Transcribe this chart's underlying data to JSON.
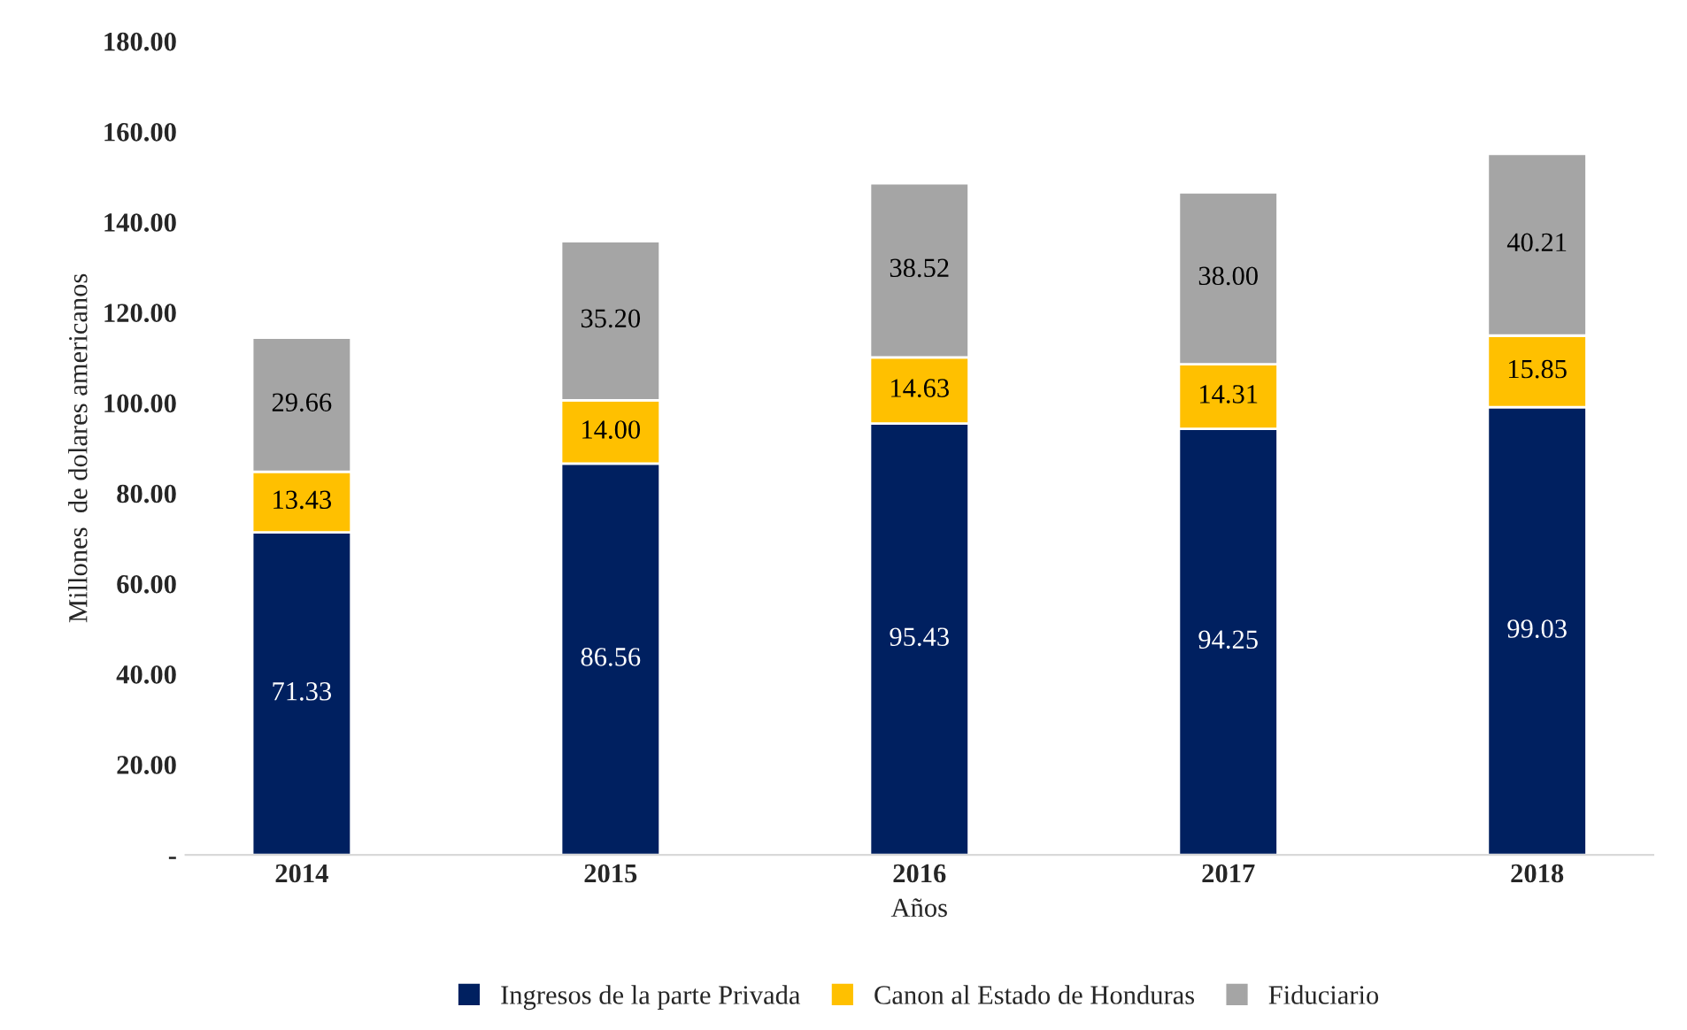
{
  "chart_data": {
    "type": "bar",
    "stacked": true,
    "xlabel": "Años",
    "ylabel": "Millones  de dolares americanos",
    "categories": [
      "2014",
      "2015",
      "2016",
      "2017",
      "2018"
    ],
    "series": [
      {
        "name": "Ingresos de la parte Privada",
        "color": "#002060",
        "values": [
          71.33,
          86.56,
          95.43,
          94.25,
          99.03
        ],
        "value_labels": [
          "71.33",
          "86.56",
          "95.43",
          "94.25",
          "99.03"
        ]
      },
      {
        "name": "Canon al Estado de Honduras",
        "color": "#ffc000",
        "values": [
          13.43,
          14.0,
          14.63,
          14.31,
          15.85
        ],
        "value_labels": [
          "13.43",
          "14.00",
          "14.63",
          "14.31",
          "15.85"
        ]
      },
      {
        "name": "Fiduciario",
        "color": "#a5a5a5",
        "values": [
          29.66,
          35.2,
          38.52,
          38.0,
          40.21
        ],
        "value_labels": [
          "29.66",
          "35.20",
          "38.52",
          "38.00",
          "40.21"
        ]
      }
    ],
    "ylim": [
      0,
      180
    ],
    "yticks": [
      {
        "value": 0,
        "label": "-"
      },
      {
        "value": 20,
        "label": "20.00"
      },
      {
        "value": 40,
        "label": "40.00"
      },
      {
        "value": 60,
        "label": "60.00"
      },
      {
        "value": 80,
        "label": "80.00"
      },
      {
        "value": 100,
        "label": "100.00"
      },
      {
        "value": 120,
        "label": "120.00"
      },
      {
        "value": 140,
        "label": "140.00"
      },
      {
        "value": 160,
        "label": "160.00"
      },
      {
        "value": 180,
        "label": "180.00"
      }
    ],
    "grid": false,
    "legend": "bottom"
  }
}
